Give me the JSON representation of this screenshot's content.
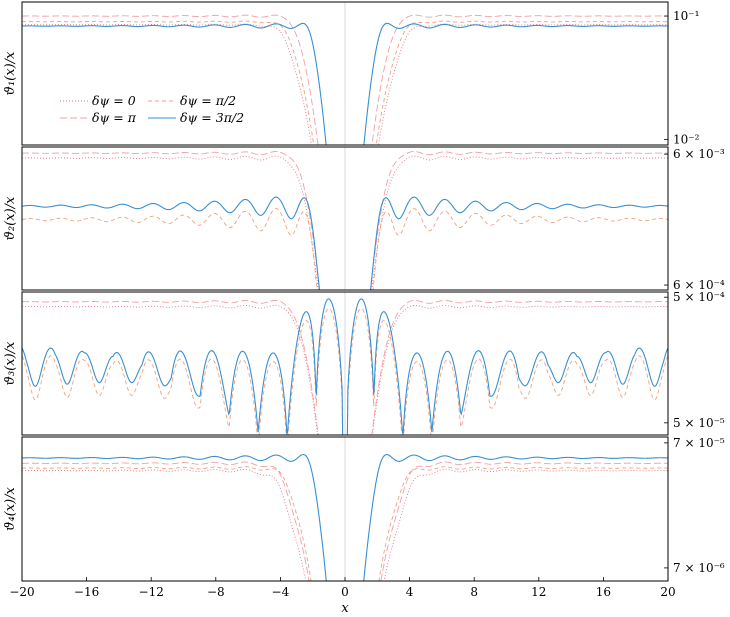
{
  "chart_data": {
    "type": "line",
    "xlabel": "x",
    "xlim": [
      -20,
      20
    ],
    "x_ticks": [
      "−20",
      "−16",
      "−12",
      "−8",
      "−4",
      "0",
      "4",
      "8",
      "12",
      "16",
      "20"
    ],
    "legend": {
      "placement": "lower-left of top panel",
      "entries": [
        {
          "label": "δψ = 0",
          "color": "#e8708a",
          "dash": "dotted"
        },
        {
          "label": "δψ = π/2",
          "color": "#f0a080",
          "dash": "dashed"
        },
        {
          "label": "δψ = π",
          "color": "#f0a0a8",
          "dash": "longdash"
        },
        {
          "label": "δψ = 3π/2",
          "color": "#3a8fd0",
          "dash": "solid"
        }
      ]
    },
    "panels": [
      {
        "ylabel": "ϑ₁(x)/x",
        "yscale": "log",
        "ylim": [
          0.009,
          0.13
        ],
        "y_tick_labels": [
          {
            "v": 0.1,
            "label": "10⁻¹"
          },
          {
            "v": 0.01,
            "label": "10⁻²"
          }
        ],
        "series": [
          {
            "name": "δψ = 0",
            "plateau": 0.085,
            "dip": 3.6,
            "osc": 0.02,
            "kind": "core"
          },
          {
            "name": "δψ = π",
            "plateau": 0.1,
            "dip": 3.0,
            "osc": 0.03,
            "kind": "core"
          },
          {
            "name": "δψ = π/2",
            "plateau": 0.09,
            "dip": 3.4,
            "osc": 0.02,
            "kind": "core"
          },
          {
            "name": "δψ = 3π/2",
            "plateau": 0.083,
            "dip": 2.0,
            "osc": 0.06,
            "kind": "core"
          }
        ]
      },
      {
        "ylabel": "ϑ₂(x)/x",
        "yscale": "log",
        "ylim": [
          0.00055,
          0.0068
        ],
        "y_tick_labels": [
          {
            "v": 0.006,
            "label": "6 × 10⁻³"
          },
          {
            "v": 0.0006,
            "label": "6 × 10⁻⁴"
          }
        ],
        "series": [
          {
            "name": "δψ = 0",
            "plateau": 0.0056,
            "dip": 2.9,
            "osc": 0.05,
            "kind": "core"
          },
          {
            "name": "δψ = π",
            "plateau": 0.0061,
            "dip": 2.8,
            "osc": 0.04,
            "kind": "core"
          },
          {
            "name": "δψ = π/2",
            "plateau": 0.0019,
            "dip": 2.2,
            "osc": 0.3,
            "kind": "core"
          },
          {
            "name": "δψ = 3π/2",
            "plateau": 0.0024,
            "dip": 2.1,
            "osc": 0.25,
            "kind": "core"
          }
        ]
      },
      {
        "ylabel": "ϑ₃(x)/x",
        "yscale": "log",
        "ylim": [
          4e-05,
          0.00055
        ],
        "y_tick_labels": [
          {
            "v": 0.0005,
            "label": "5 × 10⁻⁴"
          },
          {
            "v": 5e-05,
            "label": "5 × 10⁻⁵"
          }
        ],
        "series": [
          {
            "name": "δψ = 0",
            "plateau": 0.00042,
            "dip": 3.0,
            "osc": 0.04,
            "kind": "core"
          },
          {
            "name": "δψ = π",
            "plateau": 0.00046,
            "dip": 3.0,
            "osc": 0.04,
            "kind": "core"
          },
          {
            "name": "δψ = π/2",
            "plateau": 0.00013,
            "dip": 0.4,
            "osc": 0.45,
            "kind": "lobes"
          },
          {
            "name": "δψ = 3π/2",
            "plateau": 0.000155,
            "dip": 0.4,
            "osc": 0.4,
            "kind": "lobes"
          }
        ]
      },
      {
        "ylabel": "ϑ₄(x)/x",
        "yscale": "log",
        "ylim": [
          5.5e-06,
          7.8e-05
        ],
        "y_tick_labels": [
          {
            "v": 7e-05,
            "label": "7 × 10⁻⁵"
          },
          {
            "v": 7e-06,
            "label": "7 × 10⁻⁶"
          }
        ],
        "series": [
          {
            "name": "δψ = 0",
            "plateau": 4.2e-05,
            "dip": 4.0,
            "osc": 0.04,
            "kind": "core"
          },
          {
            "name": "δψ = π",
            "plateau": 4.8e-05,
            "dip": 3.8,
            "osc": 0.04,
            "kind": "core"
          },
          {
            "name": "δψ = π/2",
            "plateau": 4.4e-05,
            "dip": 3.5,
            "osc": 0.04,
            "kind": "core"
          },
          {
            "name": "δψ = 3π/2",
            "plateau": 5.3e-05,
            "dip": 2.0,
            "osc": 0.08,
            "kind": "core"
          }
        ]
      }
    ]
  }
}
